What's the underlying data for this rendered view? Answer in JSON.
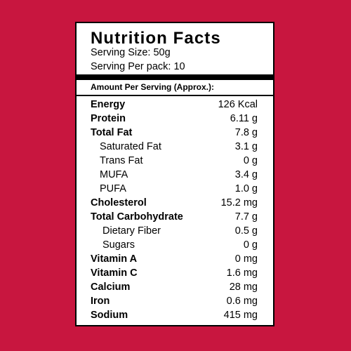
{
  "label": {
    "title": "Nutrition Facts",
    "serving_size": "Serving Size: 50g",
    "serving_per_pack": "Serving Per pack: 10",
    "amount_header": "Amount Per Serving (Approx.):",
    "rows": [
      {
        "name": "Energy",
        "value": "126 Kcal",
        "bold": true,
        "indent": 0
      },
      {
        "name": "Protein",
        "value": "6.11 g",
        "bold": true,
        "indent": 0
      },
      {
        "name": "Total Fat",
        "value": "7.8 g",
        "bold": true,
        "indent": 0
      },
      {
        "name": "Saturated Fat",
        "value": "3.1 g",
        "bold": false,
        "indent": 1
      },
      {
        "name": "Trans Fat",
        "value": "0 g",
        "bold": false,
        "indent": 1
      },
      {
        "name": "MUFA",
        "value": "3.4 g",
        "bold": false,
        "indent": 1
      },
      {
        "name": "PUFA",
        "value": "1.0 g",
        "bold": false,
        "indent": 1
      },
      {
        "name": "Cholesterol",
        "value": "15.2 mg",
        "bold": true,
        "indent": 0
      },
      {
        "name": "Total Carbohydrate",
        "value": "7.7 g",
        "bold": true,
        "indent": 0
      },
      {
        "name": "Dietary Fiber",
        "value": "0.5 g",
        "bold": false,
        "indent": 2
      },
      {
        "name": "Sugars",
        "value": "0 g",
        "bold": false,
        "indent": 2
      },
      {
        "name": "Vitamin A",
        "value": "0 mg",
        "bold": true,
        "indent": 0
      },
      {
        "name": "Vitamin C",
        "value": "1.6 mg",
        "bold": true,
        "indent": 0
      },
      {
        "name": "Calcium",
        "value": "28 mg",
        "bold": true,
        "indent": 0
      },
      {
        "name": "Iron",
        "value": "0.6 mg",
        "bold": true,
        "indent": 0
      },
      {
        "name": "Sodium",
        "value": "415 mg",
        "bold": true,
        "indent": 0
      }
    ]
  },
  "colors": {
    "background": "#c8163f",
    "panel": "#ffffff",
    "ink": "#000000"
  }
}
